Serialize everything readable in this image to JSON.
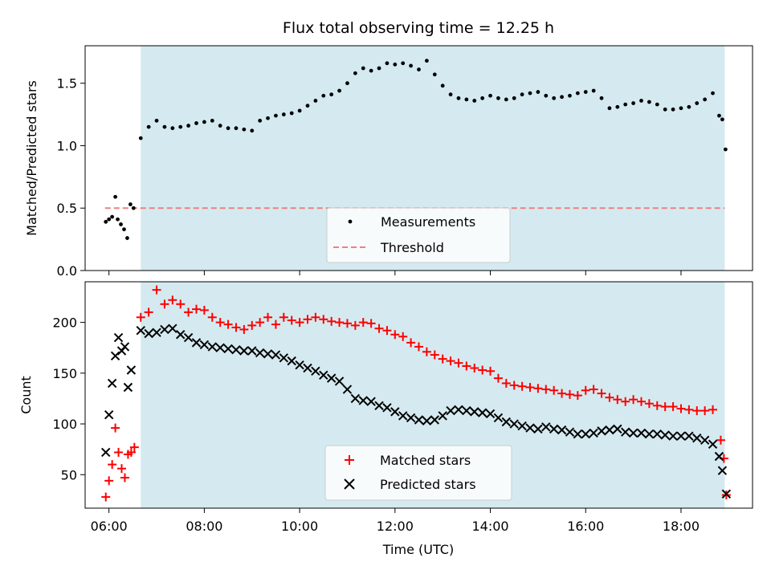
{
  "figure": {
    "title": "Flux total observing time = 12.25 h",
    "xlabel": "Time (UTC)",
    "x_ticks": [
      "06:00",
      "08:00",
      "10:00",
      "12:00",
      "14:00",
      "16:00",
      "18:00"
    ],
    "shaded_interval": [
      "06:40",
      "18:55"
    ],
    "shade_color": "#d4eaf0"
  },
  "chart_data": [
    {
      "type": "scatter",
      "panel": "top",
      "ylabel": "Matched/Predicted stars",
      "xlim": [
        "05:30",
        "19:30"
      ],
      "ylim": [
        0.0,
        1.8
      ],
      "y_ticks": [
        "0.0",
        "0.5",
        "1.0",
        "1.5"
      ],
      "legend_position": "lower center",
      "threshold": {
        "name": "Threshold",
        "value": 0.5,
        "x_range": [
          "05:55",
          "18:55"
        ],
        "color": "#f08080"
      },
      "series": [
        {
          "name": "Measurements",
          "color": "#000000",
          "marker": "dot",
          "points": [
            [
              "05:56",
              0.39
            ],
            [
              "06:00",
              0.41
            ],
            [
              "06:04",
              0.43
            ],
            [
              "06:08",
              0.59
            ],
            [
              "06:11",
              0.41
            ],
            [
              "06:15",
              0.37
            ],
            [
              "06:19",
              0.33
            ],
            [
              "06:23",
              0.26
            ],
            [
              "06:27",
              0.53
            ],
            [
              "06:31",
              0.5
            ],
            [
              "06:40",
              1.06
            ],
            [
              "06:50",
              1.15
            ],
            [
              "07:00",
              1.2
            ],
            [
              "07:10",
              1.15
            ],
            [
              "07:20",
              1.14
            ],
            [
              "07:30",
              1.15
            ],
            [
              "07:40",
              1.16
            ],
            [
              "07:50",
              1.18
            ],
            [
              "08:00",
              1.19
            ],
            [
              "08:10",
              1.2
            ],
            [
              "08:20",
              1.16
            ],
            [
              "08:30",
              1.14
            ],
            [
              "08:40",
              1.14
            ],
            [
              "08:50",
              1.13
            ],
            [
              "09:00",
              1.12
            ],
            [
              "09:10",
              1.2
            ],
            [
              "09:20",
              1.22
            ],
            [
              "09:30",
              1.24
            ],
            [
              "09:40",
              1.25
            ],
            [
              "09:50",
              1.26
            ],
            [
              "10:00",
              1.28
            ],
            [
              "10:10",
              1.32
            ],
            [
              "10:20",
              1.36
            ],
            [
              "10:30",
              1.4
            ],
            [
              "10:40",
              1.41
            ],
            [
              "10:50",
              1.44
            ],
            [
              "11:00",
              1.5
            ],
            [
              "11:10",
              1.58
            ],
            [
              "11:20",
              1.62
            ],
            [
              "11:30",
              1.6
            ],
            [
              "11:40",
              1.62
            ],
            [
              "11:50",
              1.66
            ],
            [
              "12:00",
              1.65
            ],
            [
              "12:10",
              1.66
            ],
            [
              "12:20",
              1.64
            ],
            [
              "12:30",
              1.61
            ],
            [
              "12:40",
              1.68
            ],
            [
              "12:50",
              1.57
            ],
            [
              "13:00",
              1.48
            ],
            [
              "13:10",
              1.41
            ],
            [
              "13:20",
              1.38
            ],
            [
              "13:30",
              1.37
            ],
            [
              "13:40",
              1.36
            ],
            [
              "13:50",
              1.38
            ],
            [
              "14:00",
              1.4
            ],
            [
              "14:10",
              1.38
            ],
            [
              "14:20",
              1.37
            ],
            [
              "14:30",
              1.38
            ],
            [
              "14:40",
              1.41
            ],
            [
              "14:50",
              1.42
            ],
            [
              "15:00",
              1.43
            ],
            [
              "15:10",
              1.4
            ],
            [
              "15:20",
              1.38
            ],
            [
              "15:30",
              1.39
            ],
            [
              "15:40",
              1.4
            ],
            [
              "15:50",
              1.42
            ],
            [
              "16:00",
              1.43
            ],
            [
              "16:10",
              1.44
            ],
            [
              "16:20",
              1.38
            ],
            [
              "16:30",
              1.3
            ],
            [
              "16:40",
              1.31
            ],
            [
              "16:50",
              1.33
            ],
            [
              "17:00",
              1.34
            ],
            [
              "17:10",
              1.36
            ],
            [
              "17:20",
              1.35
            ],
            [
              "17:30",
              1.33
            ],
            [
              "17:40",
              1.29
            ],
            [
              "17:50",
              1.29
            ],
            [
              "18:00",
              1.3
            ],
            [
              "18:10",
              1.31
            ],
            [
              "18:20",
              1.34
            ],
            [
              "18:30",
              1.37
            ],
            [
              "18:40",
              1.42
            ],
            [
              "18:48",
              1.24
            ],
            [
              "18:52",
              1.21
            ],
            [
              "18:56",
              0.97
            ]
          ]
        }
      ]
    },
    {
      "type": "scatter",
      "panel": "bottom",
      "ylabel": "Count",
      "xlim": [
        "05:30",
        "19:30"
      ],
      "ylim": [
        17,
        240
      ],
      "y_ticks": [
        "50",
        "100",
        "150",
        "200"
      ],
      "legend_position": "lower center",
      "series": [
        {
          "name": "Matched stars",
          "color": "#ff0000",
          "marker": "plus",
          "points": [
            [
              "05:56",
              28
            ],
            [
              "06:00",
              44
            ],
            [
              "06:04",
              60
            ],
            [
              "06:08",
              96
            ],
            [
              "06:12",
              72
            ],
            [
              "06:16",
              56
            ],
            [
              "06:20",
              47
            ],
            [
              "06:24",
              70
            ],
            [
              "06:28",
              72
            ],
            [
              "06:32",
              77
            ],
            [
              "06:40",
              205
            ],
            [
              "06:50",
              210
            ],
            [
              "07:00",
              232
            ],
            [
              "07:10",
              218
            ],
            [
              "07:20",
              222
            ],
            [
              "07:30",
              218
            ],
            [
              "07:40",
              210
            ],
            [
              "07:50",
              213
            ],
            [
              "08:00",
              212
            ],
            [
              "08:10",
              205
            ],
            [
              "08:20",
              200
            ],
            [
              "08:30",
              198
            ],
            [
              "08:40",
              195
            ],
            [
              "08:50",
              193
            ],
            [
              "09:00",
              197
            ],
            [
              "09:10",
              200
            ],
            [
              "09:20",
              205
            ],
            [
              "09:30",
              198
            ],
            [
              "09:40",
              205
            ],
            [
              "09:50",
              202
            ],
            [
              "10:00",
              200
            ],
            [
              "10:10",
              203
            ],
            [
              "10:20",
              205
            ],
            [
              "10:30",
              203
            ],
            [
              "10:40",
              201
            ],
            [
              "10:50",
              200
            ],
            [
              "11:00",
              199
            ],
            [
              "11:10",
              197
            ],
            [
              "11:20",
              200
            ],
            [
              "11:30",
              199
            ],
            [
              "11:40",
              194
            ],
            [
              "11:50",
              192
            ],
            [
              "12:00",
              188
            ],
            [
              "12:10",
              186
            ],
            [
              "12:20",
              180
            ],
            [
              "12:30",
              176
            ],
            [
              "12:40",
              171
            ],
            [
              "12:50",
              168
            ],
            [
              "13:00",
              164
            ],
            [
              "13:10",
              162
            ],
            [
              "13:20",
              160
            ],
            [
              "13:30",
              157
            ],
            [
              "13:40",
              155
            ],
            [
              "13:50",
              153
            ],
            [
              "14:00",
              152
            ],
            [
              "14:10",
              145
            ],
            [
              "14:20",
              140
            ],
            [
              "14:30",
              138
            ],
            [
              "14:40",
              137
            ],
            [
              "14:50",
              136
            ],
            [
              "15:00",
              135
            ],
            [
              "15:10",
              134
            ],
            [
              "15:20",
              133
            ],
            [
              "15:30",
              130
            ],
            [
              "15:40",
              129
            ],
            [
              "15:50",
              128
            ],
            [
              "16:00",
              133
            ],
            [
              "16:10",
              134
            ],
            [
              "16:20",
              130
            ],
            [
              "16:30",
              126
            ],
            [
              "16:40",
              124
            ],
            [
              "16:50",
              122
            ],
            [
              "17:00",
              124
            ],
            [
              "17:10",
              122
            ],
            [
              "17:20",
              120
            ],
            [
              "17:30",
              118
            ],
            [
              "17:40",
              117
            ],
            [
              "17:50",
              117
            ],
            [
              "18:00",
              115
            ],
            [
              "18:10",
              114
            ],
            [
              "18:20",
              113
            ],
            [
              "18:30",
              113
            ],
            [
              "18:40",
              114
            ],
            [
              "18:50",
              84
            ],
            [
              "18:54",
              66
            ],
            [
              "18:57",
              30
            ]
          ]
        },
        {
          "name": "Predicted stars",
          "color": "#000000",
          "marker": "x",
          "points": [
            [
              "05:56",
              72
            ],
            [
              "06:00",
              109
            ],
            [
              "06:04",
              140
            ],
            [
              "06:08",
              167
            ],
            [
              "06:12",
              185
            ],
            [
              "06:16",
              172
            ],
            [
              "06:20",
              176
            ],
            [
              "06:24",
              136
            ],
            [
              "06:28",
              153
            ],
            [
              "06:40",
              192
            ],
            [
              "06:50",
              189
            ],
            [
              "07:00",
              190
            ],
            [
              "07:10",
              193
            ],
            [
              "07:20",
              194
            ],
            [
              "07:30",
              188
            ],
            [
              "07:40",
              185
            ],
            [
              "07:50",
              180
            ],
            [
              "08:00",
              178
            ],
            [
              "08:10",
              176
            ],
            [
              "08:20",
              175
            ],
            [
              "08:30",
              174
            ],
            [
              "08:40",
              173
            ],
            [
              "08:50",
              172
            ],
            [
              "09:00",
              172
            ],
            [
              "09:10",
              170
            ],
            [
              "09:20",
              169
            ],
            [
              "09:30",
              168
            ],
            [
              "09:40",
              165
            ],
            [
              "09:50",
              162
            ],
            [
              "10:00",
              158
            ],
            [
              "10:10",
              155
            ],
            [
              "10:20",
              152
            ],
            [
              "10:30",
              148
            ],
            [
              "10:40",
              145
            ],
            [
              "10:50",
              142
            ],
            [
              "11:00",
              134
            ],
            [
              "11:10",
              125
            ],
            [
              "11:20",
              123
            ],
            [
              "11:30",
              122
            ],
            [
              "11:40",
              118
            ],
            [
              "11:50",
              116
            ],
            [
              "12:00",
              112
            ],
            [
              "12:10",
              108
            ],
            [
              "12:20",
              106
            ],
            [
              "12:30",
              104
            ],
            [
              "12:40",
              103
            ],
            [
              "12:50",
              104
            ],
            [
              "13:00",
              108
            ],
            [
              "13:10",
              113
            ],
            [
              "13:20",
              114
            ],
            [
              "13:30",
              113
            ],
            [
              "13:40",
              112
            ],
            [
              "13:50",
              111
            ],
            [
              "14:00",
              110
            ],
            [
              "14:10",
              106
            ],
            [
              "14:20",
              102
            ],
            [
              "14:30",
              100
            ],
            [
              "14:40",
              98
            ],
            [
              "14:50",
              96
            ],
            [
              "15:00",
              95
            ],
            [
              "15:10",
              97
            ],
            [
              "15:20",
              95
            ],
            [
              "15:30",
              94
            ],
            [
              "15:40",
              92
            ],
            [
              "15:50",
              90
            ],
            [
              "16:00",
              90
            ],
            [
              "16:10",
              91
            ],
            [
              "16:20",
              93
            ],
            [
              "16:30",
              94
            ],
            [
              "16:40",
              95
            ],
            [
              "16:50",
              92
            ],
            [
              "17:00",
              91
            ],
            [
              "17:10",
              91
            ],
            [
              "17:20",
              90
            ],
            [
              "17:30",
              90
            ],
            [
              "17:40",
              89
            ],
            [
              "17:50",
              88
            ],
            [
              "18:00",
              88
            ],
            [
              "18:10",
              88
            ],
            [
              "18:20",
              86
            ],
            [
              "18:30",
              84
            ],
            [
              "18:40",
              80
            ],
            [
              "18:48",
              68
            ],
            [
              "18:52",
              54
            ],
            [
              "18:57",
              31
            ]
          ]
        }
      ]
    }
  ]
}
